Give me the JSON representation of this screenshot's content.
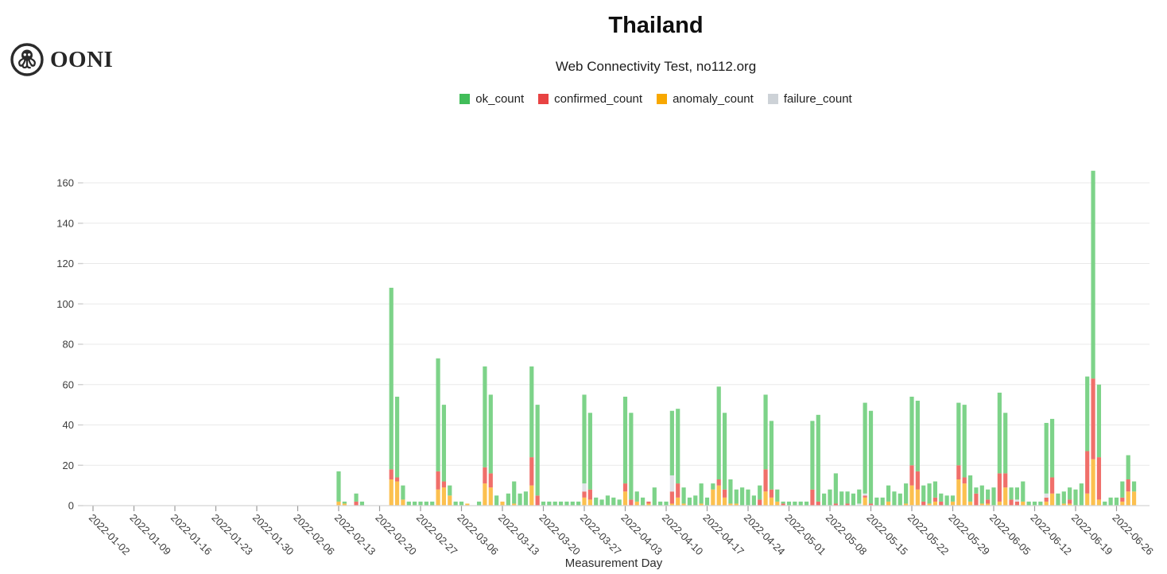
{
  "logo": {
    "text": "OONI",
    "icon": "ooni-octopus-icon"
  },
  "chart_data": {
    "type": "bar",
    "stacked": true,
    "title": "Thailand",
    "subtitle": "Web Connectivity Test, no112.org",
    "xlabel": "Measurement Day",
    "ylabel": "",
    "ylim": [
      0,
      160
    ],
    "yticks": [
      0,
      20,
      40,
      60,
      80,
      100,
      120,
      140,
      160
    ],
    "grid": "horizontal",
    "legend_position": "top-center",
    "x_start_date": "2022-01-02",
    "x_end_date": "2022-06-29",
    "xtick_labels": [
      "2022-01-02",
      "2022-01-09",
      "2022-01-16",
      "2022-01-23",
      "2022-01-30",
      "2022-02-06",
      "2022-02-13",
      "2022-02-20",
      "2022-02-27",
      "2022-03-06",
      "2022-03-13",
      "2022-03-20",
      "2022-03-27",
      "2022-04-03",
      "2022-04-10",
      "2022-04-17",
      "2022-04-24",
      "2022-05-01",
      "2022-05-08",
      "2022-05-15",
      "2022-05-22",
      "2022-05-29",
      "2022-06-05",
      "2022-06-12",
      "2022-06-19",
      "2022-06-26"
    ],
    "series_stack_order": [
      "anomaly_count",
      "confirmed_count",
      "failure_count",
      "ok_count"
    ],
    "legend": [
      {
        "name": "ok_count",
        "color": "#41BD59",
        "bar_color": "#7DD389"
      },
      {
        "name": "confirmed_count",
        "color": "#E84343",
        "bar_color": "#F06F6A"
      },
      {
        "name": "anomaly_count",
        "color": "#F8A800",
        "bar_color": "#FCC04F"
      },
      {
        "name": "failure_count",
        "color": "#CDD2D7",
        "bar_color": "#DFE2E6"
      }
    ],
    "days": [
      {
        "date": "2022-02-13",
        "ok": 15,
        "confirmed": 0,
        "anomaly": 2,
        "failure": 0
      },
      {
        "date": "2022-02-14",
        "ok": 1,
        "confirmed": 0,
        "anomaly": 1,
        "failure": 0
      },
      {
        "date": "2022-02-16",
        "ok": 4,
        "confirmed": 2,
        "anomaly": 0,
        "failure": 0
      },
      {
        "date": "2022-02-17",
        "ok": 2,
        "confirmed": 0,
        "anomaly": 0,
        "failure": 0
      },
      {
        "date": "2022-02-22",
        "ok": 90,
        "confirmed": 5,
        "anomaly": 13,
        "failure": 0
      },
      {
        "date": "2022-02-23",
        "ok": 40,
        "confirmed": 2,
        "anomaly": 12,
        "failure": 0
      },
      {
        "date": "2022-02-24",
        "ok": 7,
        "confirmed": 0,
        "anomaly": 3,
        "failure": 0
      },
      {
        "date": "2022-02-25",
        "ok": 2,
        "confirmed": 0,
        "anomaly": 0,
        "failure": 0
      },
      {
        "date": "2022-02-26",
        "ok": 2,
        "confirmed": 0,
        "anomaly": 0,
        "failure": 0
      },
      {
        "date": "2022-02-27",
        "ok": 2,
        "confirmed": 0,
        "anomaly": 0,
        "failure": 0
      },
      {
        "date": "2022-02-28",
        "ok": 2,
        "confirmed": 0,
        "anomaly": 0,
        "failure": 0
      },
      {
        "date": "2022-03-01",
        "ok": 2,
        "confirmed": 0,
        "anomaly": 0,
        "failure": 0
      },
      {
        "date": "2022-03-02",
        "ok": 56,
        "confirmed": 9,
        "anomaly": 8,
        "failure": 0
      },
      {
        "date": "2022-03-03",
        "ok": 38,
        "confirmed": 3,
        "anomaly": 9,
        "failure": 0
      },
      {
        "date": "2022-03-04",
        "ok": 5,
        "confirmed": 0,
        "anomaly": 5,
        "failure": 0
      },
      {
        "date": "2022-03-05",
        "ok": 2,
        "confirmed": 0,
        "anomaly": 0,
        "failure": 0
      },
      {
        "date": "2022-03-06",
        "ok": 2,
        "confirmed": 0,
        "anomaly": 0,
        "failure": 0
      },
      {
        "date": "2022-03-07",
        "ok": 0,
        "confirmed": 0,
        "anomaly": 1,
        "failure": 0
      },
      {
        "date": "2022-03-09",
        "ok": 2,
        "confirmed": 0,
        "anomaly": 0,
        "failure": 0
      },
      {
        "date": "2022-03-10",
        "ok": 50,
        "confirmed": 8,
        "anomaly": 11,
        "failure": 0
      },
      {
        "date": "2022-03-11",
        "ok": 39,
        "confirmed": 7,
        "anomaly": 9,
        "failure": 0
      },
      {
        "date": "2022-03-12",
        "ok": 5,
        "confirmed": 0,
        "anomaly": 0,
        "failure": 0
      },
      {
        "date": "2022-03-13",
        "ok": 0,
        "confirmed": 0,
        "anomaly": 2,
        "failure": 0
      },
      {
        "date": "2022-03-14",
        "ok": 6,
        "confirmed": 0,
        "anomaly": 0,
        "failure": 0
      },
      {
        "date": "2022-03-15",
        "ok": 11,
        "confirmed": 0,
        "anomaly": 1,
        "failure": 0
      },
      {
        "date": "2022-03-16",
        "ok": 6,
        "confirmed": 0,
        "anomaly": 0,
        "failure": 0
      },
      {
        "date": "2022-03-17",
        "ok": 7,
        "confirmed": 0,
        "anomaly": 0,
        "failure": 0
      },
      {
        "date": "2022-03-18",
        "ok": 45,
        "confirmed": 14,
        "anomaly": 10,
        "failure": 0
      },
      {
        "date": "2022-03-19",
        "ok": 45,
        "confirmed": 5,
        "anomaly": 0,
        "failure": 0
      },
      {
        "date": "2022-03-20",
        "ok": 2,
        "confirmed": 0,
        "anomaly": 0,
        "failure": 0
      },
      {
        "date": "2022-03-21",
        "ok": 2,
        "confirmed": 0,
        "anomaly": 0,
        "failure": 0
      },
      {
        "date": "2022-03-22",
        "ok": 2,
        "confirmed": 0,
        "anomaly": 0,
        "failure": 0
      },
      {
        "date": "2022-03-23",
        "ok": 2,
        "confirmed": 0,
        "anomaly": 0,
        "failure": 0
      },
      {
        "date": "2022-03-24",
        "ok": 2,
        "confirmed": 0,
        "anomaly": 0,
        "failure": 0
      },
      {
        "date": "2022-03-25",
        "ok": 2,
        "confirmed": 0,
        "anomaly": 0,
        "failure": 0
      },
      {
        "date": "2022-03-26",
        "ok": 2,
        "confirmed": 0,
        "anomaly": 0,
        "failure": 0
      },
      {
        "date": "2022-03-27",
        "ok": 44,
        "confirmed": 3,
        "anomaly": 4,
        "failure": 4
      },
      {
        "date": "2022-03-28",
        "ok": 38,
        "confirmed": 5,
        "anomaly": 3,
        "failure": 0
      },
      {
        "date": "2022-03-29",
        "ok": 4,
        "confirmed": 0,
        "anomaly": 0,
        "failure": 0
      },
      {
        "date": "2022-03-30",
        "ok": 3,
        "confirmed": 0,
        "anomaly": 0,
        "failure": 0
      },
      {
        "date": "2022-03-31",
        "ok": 5,
        "confirmed": 0,
        "anomaly": 0,
        "failure": 0
      },
      {
        "date": "2022-04-01",
        "ok": 4,
        "confirmed": 0,
        "anomaly": 0,
        "failure": 0
      },
      {
        "date": "2022-04-02",
        "ok": 3,
        "confirmed": 0,
        "anomaly": 0,
        "failure": 0
      },
      {
        "date": "2022-04-03",
        "ok": 43,
        "confirmed": 4,
        "anomaly": 7,
        "failure": 0
      },
      {
        "date": "2022-04-04",
        "ok": 43,
        "confirmed": 3,
        "anomaly": 0,
        "failure": 0
      },
      {
        "date": "2022-04-05",
        "ok": 5,
        "confirmed": 0,
        "anomaly": 2,
        "failure": 0
      },
      {
        "date": "2022-04-06",
        "ok": 4,
        "confirmed": 0,
        "anomaly": 0,
        "failure": 0
      },
      {
        "date": "2022-04-07",
        "ok": 0,
        "confirmed": 1,
        "anomaly": 1,
        "failure": 0
      },
      {
        "date": "2022-04-08",
        "ok": 9,
        "confirmed": 0,
        "anomaly": 0,
        "failure": 0
      },
      {
        "date": "2022-04-09",
        "ok": 2,
        "confirmed": 0,
        "anomaly": 0,
        "failure": 0
      },
      {
        "date": "2022-04-10",
        "ok": 2,
        "confirmed": 0,
        "anomaly": 0,
        "failure": 0
      },
      {
        "date": "2022-04-11",
        "ok": 32,
        "confirmed": 6,
        "anomaly": 1,
        "failure": 8
      },
      {
        "date": "2022-04-12",
        "ok": 37,
        "confirmed": 7,
        "anomaly": 4,
        "failure": 0
      },
      {
        "date": "2022-04-13",
        "ok": 8,
        "confirmed": 0,
        "anomaly": 1,
        "failure": 0
      },
      {
        "date": "2022-04-14",
        "ok": 4,
        "confirmed": 0,
        "anomaly": 0,
        "failure": 0
      },
      {
        "date": "2022-04-15",
        "ok": 5,
        "confirmed": 0,
        "anomaly": 0,
        "failure": 0
      },
      {
        "date": "2022-04-16",
        "ok": 10,
        "confirmed": 0,
        "anomaly": 1,
        "failure": 0
      },
      {
        "date": "2022-04-17",
        "ok": 4,
        "confirmed": 0,
        "anomaly": 0,
        "failure": 0
      },
      {
        "date": "2022-04-18",
        "ok": 3,
        "confirmed": 0,
        "anomaly": 8,
        "failure": 0
      },
      {
        "date": "2022-04-19",
        "ok": 46,
        "confirmed": 3,
        "anomaly": 10,
        "failure": 0
      },
      {
        "date": "2022-04-20",
        "ok": 38,
        "confirmed": 4,
        "anomaly": 4,
        "failure": 0
      },
      {
        "date": "2022-04-21",
        "ok": 12,
        "confirmed": 0,
        "anomaly": 1,
        "failure": 0
      },
      {
        "date": "2022-04-22",
        "ok": 7,
        "confirmed": 0,
        "anomaly": 1,
        "failure": 0
      },
      {
        "date": "2022-04-23",
        "ok": 9,
        "confirmed": 0,
        "anomaly": 0,
        "failure": 0
      },
      {
        "date": "2022-04-24",
        "ok": 8,
        "confirmed": 0,
        "anomaly": 0,
        "failure": 0
      },
      {
        "date": "2022-04-25",
        "ok": 5,
        "confirmed": 0,
        "anomaly": 0,
        "failure": 0
      },
      {
        "date": "2022-04-26",
        "ok": 7,
        "confirmed": 3,
        "anomaly": 0,
        "failure": 0
      },
      {
        "date": "2022-04-27",
        "ok": 37,
        "confirmed": 11,
        "anomaly": 7,
        "failure": 0
      },
      {
        "date": "2022-04-28",
        "ok": 34,
        "confirmed": 4,
        "anomaly": 4,
        "failure": 0
      },
      {
        "date": "2022-04-29",
        "ok": 6,
        "confirmed": 0,
        "anomaly": 2,
        "failure": 0
      },
      {
        "date": "2022-04-30",
        "ok": 1,
        "confirmed": 1,
        "anomaly": 0,
        "failure": 0
      },
      {
        "date": "2022-05-01",
        "ok": 2,
        "confirmed": 0,
        "anomaly": 0,
        "failure": 0
      },
      {
        "date": "2022-05-02",
        "ok": 2,
        "confirmed": 0,
        "anomaly": 0,
        "failure": 0
      },
      {
        "date": "2022-05-03",
        "ok": 2,
        "confirmed": 0,
        "anomaly": 0,
        "failure": 0
      },
      {
        "date": "2022-05-04",
        "ok": 2,
        "confirmed": 0,
        "anomaly": 0,
        "failure": 0
      },
      {
        "date": "2022-05-05",
        "ok": 34,
        "confirmed": 8,
        "anomaly": 0,
        "failure": 0
      },
      {
        "date": "2022-05-06",
        "ok": 43,
        "confirmed": 2,
        "anomaly": 0,
        "failure": 0
      },
      {
        "date": "2022-05-07",
        "ok": 6,
        "confirmed": 0,
        "anomaly": 0,
        "failure": 0
      },
      {
        "date": "2022-05-08",
        "ok": 8,
        "confirmed": 0,
        "anomaly": 0,
        "failure": 0
      },
      {
        "date": "2022-05-09",
        "ok": 15,
        "confirmed": 1,
        "anomaly": 0,
        "failure": 0
      },
      {
        "date": "2022-05-10",
        "ok": 7,
        "confirmed": 0,
        "anomaly": 0,
        "failure": 0
      },
      {
        "date": "2022-05-11",
        "ok": 6,
        "confirmed": 1,
        "anomaly": 0,
        "failure": 0
      },
      {
        "date": "2022-05-12",
        "ok": 6,
        "confirmed": 0,
        "anomaly": 0,
        "failure": 0
      },
      {
        "date": "2022-05-13",
        "ok": 7,
        "confirmed": 0,
        "anomaly": 0,
        "failure": 1
      },
      {
        "date": "2022-05-14",
        "ok": 45,
        "confirmed": 1,
        "anomaly": 4,
        "failure": 1
      },
      {
        "date": "2022-05-15",
        "ok": 46,
        "confirmed": 1,
        "anomaly": 0,
        "failure": 0
      },
      {
        "date": "2022-05-16",
        "ok": 4,
        "confirmed": 0,
        "anomaly": 0,
        "failure": 0
      },
      {
        "date": "2022-05-17",
        "ok": 4,
        "confirmed": 0,
        "anomaly": 0,
        "failure": 0
      },
      {
        "date": "2022-05-18",
        "ok": 8,
        "confirmed": 0,
        "anomaly": 2,
        "failure": 0
      },
      {
        "date": "2022-05-19",
        "ok": 7,
        "confirmed": 0,
        "anomaly": 0,
        "failure": 0
      },
      {
        "date": "2022-05-20",
        "ok": 6,
        "confirmed": 0,
        "anomaly": 0,
        "failure": 0
      },
      {
        "date": "2022-05-21",
        "ok": 10,
        "confirmed": 0,
        "anomaly": 1,
        "failure": 0
      },
      {
        "date": "2022-05-22",
        "ok": 34,
        "confirmed": 10,
        "anomaly": 10,
        "failure": 0
      },
      {
        "date": "2022-05-23",
        "ok": 35,
        "confirmed": 9,
        "anomaly": 8,
        "failure": 0
      },
      {
        "date": "2022-05-24",
        "ok": 8,
        "confirmed": 2,
        "anomaly": 0,
        "failure": 0
      },
      {
        "date": "2022-05-25",
        "ok": 10,
        "confirmed": 0,
        "anomaly": 1,
        "failure": 0
      },
      {
        "date": "2022-05-26",
        "ok": 8,
        "confirmed": 2,
        "anomaly": 2,
        "failure": 0
      },
      {
        "date": "2022-05-27",
        "ok": 4,
        "confirmed": 2,
        "anomaly": 0,
        "failure": 0
      },
      {
        "date": "2022-05-28",
        "ok": 5,
        "confirmed": 0,
        "anomaly": 0,
        "failure": 0
      },
      {
        "date": "2022-05-29",
        "ok": 3,
        "confirmed": 0,
        "anomaly": 2,
        "failure": 0
      },
      {
        "date": "2022-05-30",
        "ok": 31,
        "confirmed": 7,
        "anomaly": 13,
        "failure": 0
      },
      {
        "date": "2022-05-31",
        "ok": 36,
        "confirmed": 3,
        "anomaly": 11,
        "failure": 0
      },
      {
        "date": "2022-06-01",
        "ok": 13,
        "confirmed": 0,
        "anomaly": 2,
        "failure": 0
      },
      {
        "date": "2022-06-02",
        "ok": 3,
        "confirmed": 6,
        "anomaly": 0,
        "failure": 0
      },
      {
        "date": "2022-06-03",
        "ok": 9,
        "confirmed": 0,
        "anomaly": 1,
        "failure": 0
      },
      {
        "date": "2022-06-04",
        "ok": 5,
        "confirmed": 2,
        "anomaly": 1,
        "failure": 0
      },
      {
        "date": "2022-06-05",
        "ok": 9,
        "confirmed": 0,
        "anomaly": 0,
        "failure": 0
      },
      {
        "date": "2022-06-06",
        "ok": 40,
        "confirmed": 14,
        "anomaly": 2,
        "failure": 0
      },
      {
        "date": "2022-06-07",
        "ok": 30,
        "confirmed": 7,
        "anomaly": 9,
        "failure": 0
      },
      {
        "date": "2022-06-08",
        "ok": 6,
        "confirmed": 3,
        "anomaly": 0,
        "failure": 0
      },
      {
        "date": "2022-06-09",
        "ok": 6,
        "confirmed": 2,
        "anomaly": 0,
        "failure": 1
      },
      {
        "date": "2022-06-10",
        "ok": 10,
        "confirmed": 0,
        "anomaly": 2,
        "failure": 0
      },
      {
        "date": "2022-06-11",
        "ok": 2,
        "confirmed": 0,
        "anomaly": 0,
        "failure": 0
      },
      {
        "date": "2022-06-12",
        "ok": 2,
        "confirmed": 0,
        "anomaly": 0,
        "failure": 0
      },
      {
        "date": "2022-06-13",
        "ok": 2,
        "confirmed": 0,
        "anomaly": 0,
        "failure": 0
      },
      {
        "date": "2022-06-14",
        "ok": 35,
        "confirmed": 2,
        "anomaly": 2,
        "failure": 2
      },
      {
        "date": "2022-06-15",
        "ok": 29,
        "confirmed": 8,
        "anomaly": 6,
        "failure": 0
      },
      {
        "date": "2022-06-16",
        "ok": 6,
        "confirmed": 0,
        "anomaly": 0,
        "failure": 0
      },
      {
        "date": "2022-06-17",
        "ok": 6,
        "confirmed": 0,
        "anomaly": 1,
        "failure": 0
      },
      {
        "date": "2022-06-18",
        "ok": 6,
        "confirmed": 2,
        "anomaly": 1,
        "failure": 0
      },
      {
        "date": "2022-06-19",
        "ok": 8,
        "confirmed": 0,
        "anomaly": 0,
        "failure": 0
      },
      {
        "date": "2022-06-20",
        "ok": 11,
        "confirmed": 0,
        "anomaly": 0,
        "failure": 0
      },
      {
        "date": "2022-06-21",
        "ok": 37,
        "confirmed": 21,
        "anomaly": 6,
        "failure": 0
      },
      {
        "date": "2022-06-22",
        "ok": 103,
        "confirmed": 40,
        "anomaly": 23,
        "failure": 0
      },
      {
        "date": "2022-06-23",
        "ok": 36,
        "confirmed": 21,
        "anomaly": 3,
        "failure": 0
      },
      {
        "date": "2022-06-24",
        "ok": 2,
        "confirmed": 0,
        "anomaly": 0,
        "failure": 0
      },
      {
        "date": "2022-06-25",
        "ok": 4,
        "confirmed": 0,
        "anomaly": 0,
        "failure": 0
      },
      {
        "date": "2022-06-26",
        "ok": 4,
        "confirmed": 0,
        "anomaly": 0,
        "failure": 0
      },
      {
        "date": "2022-06-27",
        "ok": 8,
        "confirmed": 2,
        "anomaly": 2,
        "failure": 0
      },
      {
        "date": "2022-06-28",
        "ok": 12,
        "confirmed": 6,
        "anomaly": 7,
        "failure": 0
      },
      {
        "date": "2022-06-29",
        "ok": 5,
        "confirmed": 0,
        "anomaly": 7,
        "failure": 0
      }
    ]
  }
}
